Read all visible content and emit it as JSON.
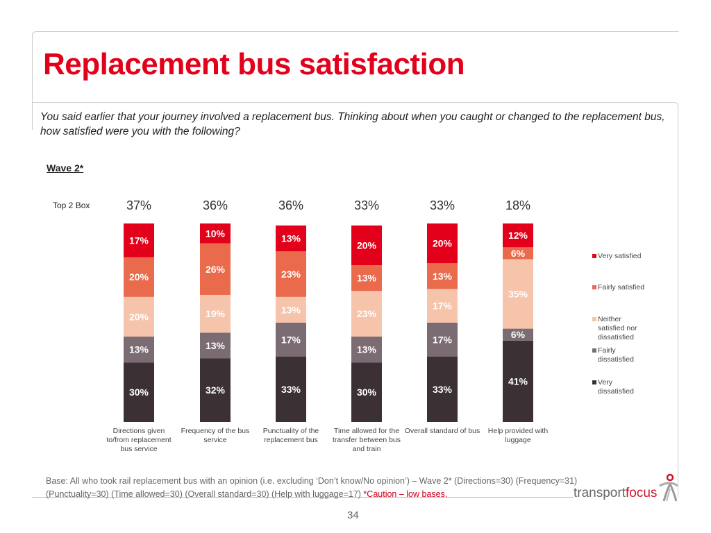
{
  "title": "Replacement bus satisfaction",
  "question": "You said earlier that your journey involved a replacement bus. Thinking about when you caught or changed to the replacement bus, how satisfied were you with the following?",
  "wave_label": "Wave 2*",
  "top2box_label": "Top 2 Box",
  "chart_data": {
    "type": "bar",
    "stacked": true,
    "percent_stacked": true,
    "categories": [
      "Directions given to/from replacement bus service",
      "Frequency of the bus service",
      "Punctuality of the replacement bus",
      "Time allowed for the transfer between bus and train",
      "Overall standard of bus",
      "Help provided with luggage"
    ],
    "top2box": [
      "37%",
      "36%",
      "36%",
      "33%",
      "33%",
      "18%"
    ],
    "series": [
      {
        "name": "Very dissatisfied",
        "color": "#3b3034",
        "values": [
          30,
          32,
          33,
          30,
          33,
          41
        ]
      },
      {
        "name": "Fairly dissatisfied",
        "color": "#7b6b72",
        "values": [
          13,
          13,
          17,
          13,
          17,
          6
        ]
      },
      {
        "name": "Neither satisfied nor dissatisfied",
        "color": "#f6c3ab",
        "values": [
          20,
          19,
          13,
          23,
          17,
          35
        ]
      },
      {
        "name": "Fairly satisfied",
        "color": "#ea6a4c",
        "values": [
          20,
          26,
          23,
          13,
          13,
          6
        ]
      },
      {
        "name": "Very satisfied",
        "color": "#e2001a",
        "values": [
          17,
          10,
          13,
          20,
          20,
          12
        ]
      }
    ],
    "ylim": [
      0,
      100
    ],
    "legend_position": "right",
    "grid": false
  },
  "legend": [
    "Very satisfied",
    "Fairly satisfied",
    "Neither satisfied nor dissatisfied",
    "Fairly dissatisfied",
    "Very dissatisfied"
  ],
  "base_text": "Base: All who took rail replacement bus with an opinion (i.e. excluding ‘Don’t know/No opinion’) – Wave 2* (Directions=30) (Frequency=31) (Punctuality=30) (Time allowed=30) (Overall standard=30) (Help with luggage=17) ",
  "caution": "*Caution – low bases.",
  "logo": {
    "part1": "transport",
    "part2": "focus"
  },
  "page_number": "34"
}
